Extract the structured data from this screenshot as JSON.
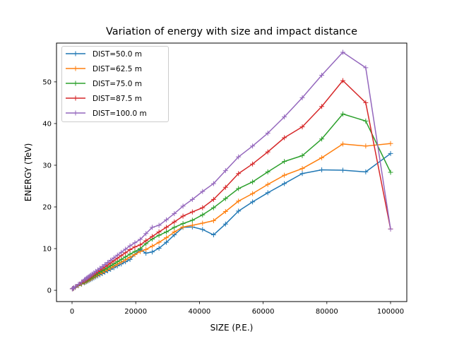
{
  "chart_data": {
    "type": "line",
    "title": "Variation of energy with size and impact distance",
    "xlabel": "SIZE (P.E.)",
    "ylabel": "ENERGY (TeV)",
    "xlim": [
      -4880,
      105100
    ],
    "ylim": [
      -2.7,
      59.3
    ],
    "xticks": [
      0,
      20000,
      40000,
      60000,
      80000,
      100000
    ],
    "xtick_labels": [
      "0",
      "20000",
      "40000",
      "60000",
      "80000",
      "100000"
    ],
    "yticks": [
      0,
      10,
      20,
      30,
      40,
      50
    ],
    "ytick_labels": [
      "0",
      "10",
      "20",
      "30",
      "40",
      "50"
    ],
    "grid": false,
    "legend_position": "upper-left",
    "marker": "plus",
    "x": [
      100,
      200,
      500,
      1000,
      2000,
      3000,
      3888,
      4217,
      4574,
      4961,
      5381,
      5836,
      6329,
      6865,
      7445,
      8075,
      8758,
      9499,
      10302,
      11174,
      12119,
      13144,
      14256,
      15462,
      16770,
      18189,
      19728,
      21397,
      23207,
      25170,
      27299,
      29608,
      32113,
      34829,
      37775,
      40970,
      44432,
      48186,
      52258,
      56674,
      61463,
      66657,
      72290,
      78398,
      85023,
      92208,
      100000
    ],
    "series": [
      {
        "name": "DIST=50.0 m",
        "color": "#1f77b4",
        "values": [
          0.34,
          0.38,
          0.5,
          0.69,
          1.08,
          1.47,
          1.82,
          1.94,
          2.08,
          2.23,
          2.4,
          2.58,
          2.77,
          2.98,
          3.2,
          3.45,
          3.72,
          4.0,
          4.32,
          4.66,
          5.03,
          5.43,
          5.86,
          6.33,
          6.84,
          7.39,
          8.6,
          9.8,
          8.9,
          9.2,
          10.1,
          11.5,
          13.3,
          15.1,
          15.2,
          14.6,
          13.3,
          15.9,
          19.0,
          21.2,
          23.4,
          25.6,
          28.0,
          28.9,
          28.8,
          28.4,
          32.8
        ]
      },
      {
        "name": "DIST=62.5 m",
        "color": "#ff7f0e",
        "values": [
          0.34,
          0.38,
          0.51,
          0.72,
          1.14,
          1.56,
          1.93,
          2.07,
          2.22,
          2.38,
          2.56,
          2.75,
          2.96,
          3.18,
          3.43,
          3.69,
          3.98,
          4.29,
          4.63,
          4.99,
          5.39,
          5.82,
          6.29,
          6.79,
          7.34,
          7.94,
          8.6,
          9.3,
          9.8,
          10.6,
          11.5,
          12.6,
          14.0,
          15.2,
          15.6,
          16.1,
          16.7,
          18.9,
          21.4,
          23.2,
          25.4,
          27.6,
          29.2,
          31.8,
          35.1,
          34.6,
          35.2
        ]
      },
      {
        "name": "DIST=75.0 m",
        "color": "#2ca02c",
        "values": [
          0.35,
          0.39,
          0.53,
          0.76,
          1.22,
          1.68,
          2.09,
          2.24,
          2.4,
          2.58,
          2.78,
          2.98,
          3.21,
          3.46,
          3.72,
          4.01,
          4.33,
          4.67,
          5.04,
          5.44,
          5.87,
          6.35,
          6.86,
          7.41,
          8.01,
          8.67,
          9.3,
          10.0,
          11.2,
          12.3,
          13.2,
          14.0,
          15.1,
          16.0,
          16.8,
          18.1,
          19.8,
          22.0,
          24.4,
          26.0,
          28.4,
          30.9,
          32.3,
          36.3,
          42.3,
          40.6,
          28.3
        ]
      },
      {
        "name": "DIST=87.5 m",
        "color": "#d62728",
        "values": [
          0.35,
          0.4,
          0.56,
          0.82,
          1.34,
          1.86,
          2.32,
          2.49,
          2.68,
          2.88,
          3.1,
          3.33,
          3.59,
          3.87,
          4.17,
          4.5,
          4.85,
          5.24,
          5.66,
          6.11,
          6.6,
          7.13,
          7.71,
          8.34,
          9.02,
          9.76,
          10.4,
          10.9,
          11.9,
          12.9,
          14.0,
          15.1,
          16.4,
          17.8,
          18.8,
          19.8,
          21.8,
          24.7,
          28.0,
          30.3,
          33.2,
          36.6,
          39.2,
          44.1,
          50.3,
          45.0,
          14.7
        ]
      },
      {
        "name": "DIST=100.0 m",
        "color": "#9467bd",
        "values": [
          0.36,
          0.41,
          0.59,
          0.87,
          1.44,
          2.01,
          2.52,
          2.7,
          2.91,
          3.13,
          3.37,
          3.63,
          3.91,
          4.21,
          4.54,
          4.9,
          5.29,
          5.71,
          6.17,
          6.67,
          7.21,
          7.79,
          8.43,
          9.11,
          9.86,
          10.67,
          11.4,
          12.2,
          13.6,
          15.1,
          15.6,
          16.9,
          18.4,
          20.2,
          21.8,
          23.7,
          25.6,
          28.7,
          32.0,
          34.6,
          37.7,
          41.6,
          46.2,
          51.6,
          57.1,
          53.4,
          14.7
        ]
      }
    ]
  }
}
